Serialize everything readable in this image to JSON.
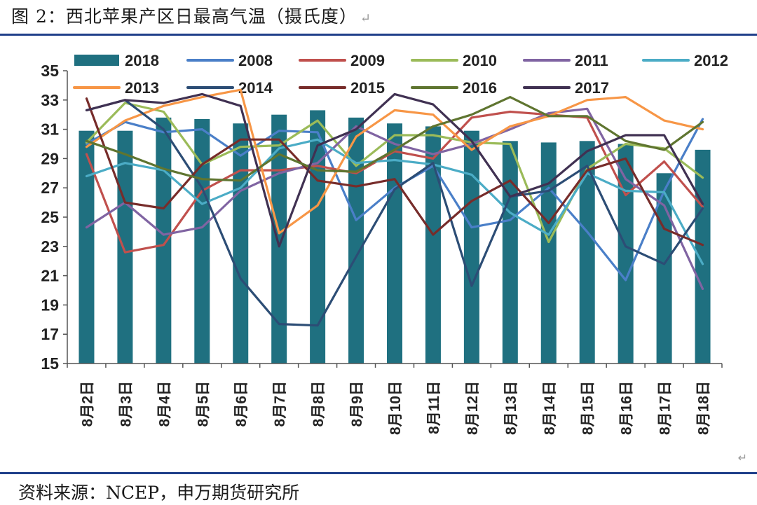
{
  "header": {
    "title": "图 2：西北苹果产区日最高气温（摄氏度）",
    "paragraph_mark": "↵"
  },
  "footer": {
    "source": "资料来源：NCEP，申万期货研究所"
  },
  "chart_data": {
    "type": "bar",
    "title": "",
    "xlabel": "",
    "ylabel": "",
    "ylim": [
      15,
      35
    ],
    "yticks": [
      15,
      17,
      19,
      21,
      23,
      25,
      27,
      29,
      31,
      33,
      35
    ],
    "grid": false,
    "legend_position": "top",
    "categories": [
      "8月2日",
      "8月3日",
      "8月4日",
      "8月5日",
      "8月6日",
      "8月7日",
      "8月8日",
      "8月9日",
      "8月10日",
      "8月11日",
      "8月12日",
      "8月13日",
      "8月14日",
      "8月15日",
      "8月16日",
      "8月17日",
      "8月18日"
    ],
    "bar_series": {
      "name": "2018",
      "color": "#1f7080",
      "values": [
        30.9,
        30.9,
        31.8,
        31.7,
        31.4,
        32.0,
        32.3,
        31.8,
        31.4,
        31.2,
        30.9,
        30.2,
        30.1,
        30.2,
        30.0,
        28.0,
        29.6
      ]
    },
    "line_series": [
      {
        "name": "2008",
        "color": "#4a7fc8",
        "values": [
          30.0,
          31.5,
          30.8,
          31.0,
          29.2,
          30.9,
          30.8,
          24.8,
          27.0,
          28.5,
          24.3,
          24.8,
          27.0,
          24.0,
          20.7,
          26.8,
          31.7
        ]
      },
      {
        "name": "2009",
        "color": "#c0504d",
        "values": [
          29.3,
          22.6,
          23.1,
          26.8,
          28.2,
          28.2,
          28.5,
          28.0,
          29.5,
          29.0,
          31.8,
          32.2,
          32.0,
          31.8,
          26.5,
          28.8,
          25.7
        ]
      },
      {
        "name": "2010",
        "color": "#9bbb59",
        "values": [
          30.1,
          32.8,
          32.2,
          28.6,
          29.8,
          29.9,
          31.6,
          28.5,
          30.6,
          30.6,
          30.1,
          30.0,
          23.3,
          28.3,
          30.0,
          29.7,
          27.7
        ]
      },
      {
        "name": "2011",
        "color": "#8064a2",
        "values": [
          24.3,
          26.0,
          23.8,
          24.3,
          26.8,
          28.0,
          28.7,
          31.2,
          30.0,
          29.3,
          30.0,
          31.0,
          32.1,
          32.4,
          27.6,
          25.8,
          20.1
        ]
      },
      {
        "name": "2012",
        "color": "#4bacc6",
        "values": [
          27.8,
          28.7,
          28.2,
          25.9,
          27.0,
          29.7,
          30.3,
          28.7,
          28.9,
          28.6,
          27.9,
          25.3,
          23.8,
          28.0,
          26.8,
          26.7,
          21.8
        ]
      },
      {
        "name": "2013",
        "color": "#f79646",
        "values": [
          29.8,
          31.6,
          32.6,
          33.2,
          33.7,
          23.9,
          25.8,
          30.5,
          32.3,
          32.0,
          29.6,
          31.2,
          31.9,
          33.0,
          33.2,
          31.6,
          31.0
        ]
      },
      {
        "name": "2014",
        "color": "#2c4d75",
        "values": [
          32.3,
          33.0,
          31.0,
          27.0,
          20.8,
          17.7,
          17.6,
          22.3,
          26.9,
          28.7,
          20.3,
          26.4,
          26.8,
          28.5,
          23.0,
          21.8,
          25.6
        ]
      },
      {
        "name": "2015",
        "color": "#772c2a",
        "values": [
          33.1,
          26.0,
          25.6,
          28.6,
          30.3,
          30.3,
          27.5,
          27.1,
          27.6,
          23.8,
          26.1,
          27.5,
          24.6,
          28.2,
          29.0,
          24.2,
          23.1
        ]
      },
      {
        "name": "2016",
        "color": "#5f7530",
        "values": [
          30.2,
          29.3,
          28.3,
          27.6,
          27.5,
          29.3,
          28.2,
          28.1,
          29.6,
          31.2,
          32.0,
          33.2,
          31.9,
          31.9,
          30.2,
          29.6,
          31.5
        ]
      },
      {
        "name": "2017",
        "color": "#403152",
        "values": [
          32.3,
          33.0,
          32.8,
          33.4,
          32.6,
          23.0,
          29.9,
          31.0,
          33.4,
          32.7,
          30.2,
          26.4,
          27.3,
          29.5,
          30.6,
          30.6,
          25.9
        ]
      }
    ]
  }
}
